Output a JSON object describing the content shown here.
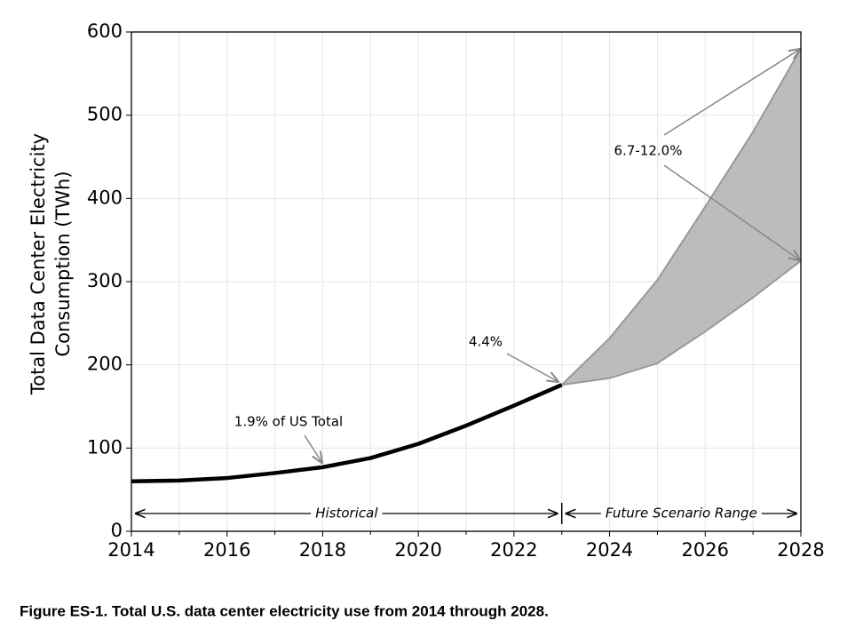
{
  "chart_data": {
    "type": "line",
    "ylabel": [
      "Total Data Center Electricity",
      "Consumption (TWh)"
    ],
    "historical": {
      "name": "Historical",
      "color": "#000000",
      "x": [
        2014,
        2015,
        2016,
        2017,
        2018,
        2019,
        2020,
        2021,
        2022,
        2023
      ],
      "values": [
        60,
        61,
        64,
        70,
        77,
        88,
        105,
        127,
        151,
        176
      ]
    },
    "range": {
      "name": "Future Scenario Range",
      "color": "#bcbcbc",
      "x": [
        2023,
        2024,
        2025,
        2026,
        2027,
        2028
      ],
      "upper": [
        176,
        232,
        302,
        390,
        480,
        580
      ],
      "lower": [
        176,
        184,
        202,
        240,
        281,
        325
      ]
    },
    "annotations": [
      "1.9% of US Total",
      "4.4%",
      "6.7-12.0%"
    ],
    "xlim": [
      2014,
      2028
    ],
    "xticks": [
      2014,
      2016,
      2018,
      2020,
      2022,
      2024,
      2026,
      2028
    ],
    "xminorticks": [
      2015,
      2017,
      2019,
      2021,
      2023,
      2025,
      2027
    ],
    "ylim": [
      0,
      600
    ],
    "yticks": [
      0,
      100,
      200,
      300,
      400,
      500,
      600
    ],
    "grid": true,
    "caption": "Figure ES-1. Total U.S. data center electricity use from 2014 through 2028."
  }
}
